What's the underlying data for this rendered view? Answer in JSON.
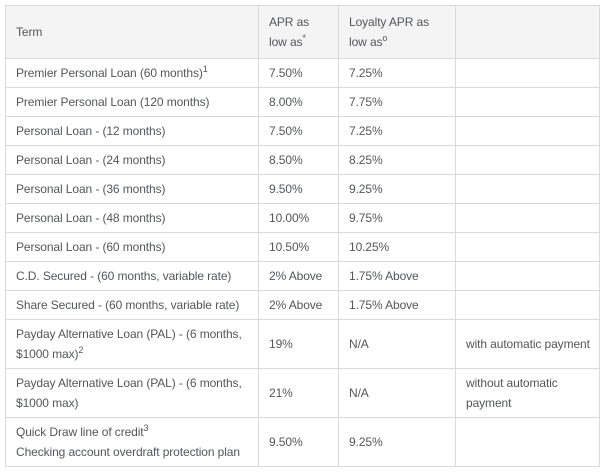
{
  "colors": {
    "text": "#54565a",
    "border": "#dadada",
    "header_background": "#f4f4f4",
    "row_background": "#ffffff"
  },
  "table": {
    "headers": {
      "term": {
        "label": "Term",
        "sup": ""
      },
      "apr": {
        "label": "APR as low as",
        "sup": "*"
      },
      "loyalty": {
        "label": "Loyalty APR as low as",
        "sup": "o"
      },
      "notes": {
        "label": "",
        "sup": ""
      }
    },
    "rows": [
      {
        "term": "Premier Personal Loan (60 months)",
        "term_sup": "1",
        "term_line2": "",
        "apr": "7.50%",
        "loyalty": "7.25%",
        "note": ""
      },
      {
        "term": "Premier Personal Loan (120 months)",
        "term_sup": "",
        "term_line2": "",
        "apr": "8.00%",
        "loyalty": "7.75%",
        "note": ""
      },
      {
        "term": "Personal Loan - (12 months)",
        "term_sup": "",
        "term_line2": "",
        "apr": "7.50%",
        "loyalty": "7.25%",
        "note": ""
      },
      {
        "term": "Personal Loan - (24 months)",
        "term_sup": "",
        "term_line2": "",
        "apr": "8.50%",
        "loyalty": "8.25%",
        "note": ""
      },
      {
        "term": "Personal Loan - (36 months)",
        "term_sup": "",
        "term_line2": "",
        "apr": "9.50%",
        "loyalty": "9.25%",
        "note": ""
      },
      {
        "term": "Personal Loan - (48 months)",
        "term_sup": "",
        "term_line2": "",
        "apr": "10.00%",
        "loyalty": "9.75%",
        "note": ""
      },
      {
        "term": "Personal Loan - (60 months)",
        "term_sup": "",
        "term_line2": "",
        "apr": "10.50%",
        "loyalty": "10.25%",
        "note": ""
      },
      {
        "term": "C.D. Secured - (60 months, variable rate)",
        "term_sup": "",
        "term_line2": "",
        "apr": "2% Above",
        "loyalty": "1.75% Above",
        "note": ""
      },
      {
        "term": "Share Secured - (60 months, variable rate)",
        "term_sup": "",
        "term_line2": "",
        "apr": "2% Above",
        "loyalty": "1.75% Above",
        "note": ""
      },
      {
        "term": "Payday Alternative Loan (PAL) - (6 months, $1000 max)",
        "term_sup": "2",
        "term_line2": "",
        "apr": "19%",
        "loyalty": "N/A",
        "note": "with automatic payment"
      },
      {
        "term": "Payday Alternative Loan (PAL) - (6 months, $1000 max)",
        "term_sup": "",
        "term_line2": "",
        "apr": "21%",
        "loyalty": "N/A",
        "note": "without automatic payment"
      },
      {
        "term": "Quick Draw line of credit",
        "term_sup": "3",
        "term_line2": "Checking account overdraft protection plan",
        "apr": "9.50%",
        "loyalty": "9.25%",
        "note": ""
      }
    ]
  }
}
